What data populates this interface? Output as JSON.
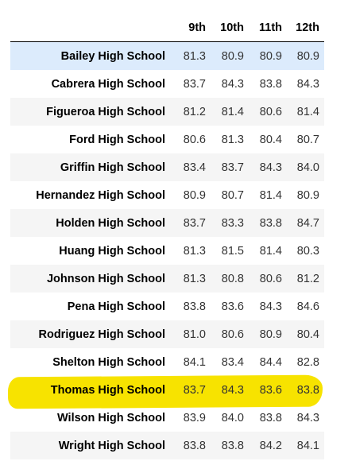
{
  "table": {
    "columns": [
      "9th",
      "10th",
      "11th",
      "12th"
    ],
    "rows": [
      {
        "school": "Bailey High School",
        "values": [
          "81.3",
          "80.9",
          "80.9",
          "80.9"
        ]
      },
      {
        "school": "Cabrera High School",
        "values": [
          "83.7",
          "84.3",
          "83.8",
          "84.3"
        ]
      },
      {
        "school": "Figueroa High School",
        "values": [
          "81.2",
          "81.4",
          "80.6",
          "81.4"
        ]
      },
      {
        "school": "Ford High School",
        "values": [
          "80.6",
          "81.3",
          "80.4",
          "80.7"
        ]
      },
      {
        "school": "Griffin High School",
        "values": [
          "83.4",
          "83.7",
          "84.3",
          "84.0"
        ]
      },
      {
        "school": "Hernandez High School",
        "values": [
          "80.9",
          "80.7",
          "81.4",
          "80.9"
        ]
      },
      {
        "school": "Holden High School",
        "values": [
          "83.7",
          "83.3",
          "83.8",
          "84.7"
        ]
      },
      {
        "school": "Huang High School",
        "values": [
          "81.3",
          "81.5",
          "81.4",
          "80.3"
        ]
      },
      {
        "school": "Johnson High School",
        "values": [
          "81.3",
          "80.8",
          "80.6",
          "81.2"
        ]
      },
      {
        "school": "Pena High School",
        "values": [
          "83.8",
          "83.6",
          "84.3",
          "84.6"
        ]
      },
      {
        "school": "Rodriguez High School",
        "values": [
          "81.0",
          "80.6",
          "80.9",
          "80.4"
        ]
      },
      {
        "school": "Shelton High School",
        "values": [
          "84.1",
          "83.4",
          "84.4",
          "82.8"
        ]
      },
      {
        "school": "Thomas High School",
        "values": [
          "83.7",
          "84.3",
          "83.6",
          "83.8"
        ]
      },
      {
        "school": "Wilson High School",
        "values": [
          "83.9",
          "84.0",
          "83.8",
          "84.3"
        ]
      },
      {
        "school": "Wright High School",
        "values": [
          "83.8",
          "83.8",
          "84.2",
          "84.1"
        ]
      }
    ],
    "selected_row": "Bailey High School",
    "highlighted_row": "Thomas High School"
  },
  "colors": {
    "selected_row_background": "#dcebfc",
    "alternate_row_background": "#f5f5f5",
    "highlighter_marker": "#f7e300"
  }
}
